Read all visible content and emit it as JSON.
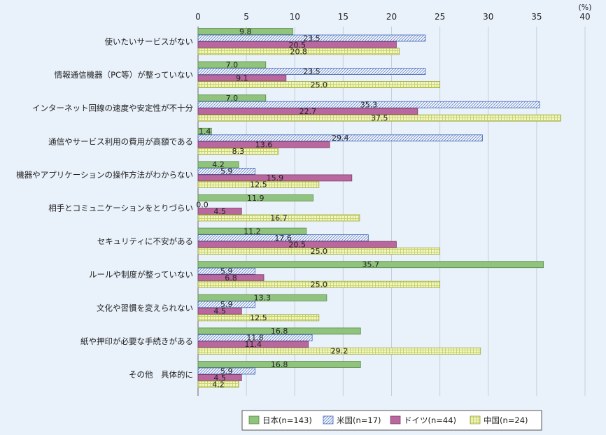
{
  "chart_data": {
    "type": "bar",
    "orientation": "horizontal",
    "unit": "(%)",
    "xlim": [
      0,
      40
    ],
    "ticks": [
      0,
      5,
      10,
      15,
      20,
      25,
      30,
      35,
      40
    ],
    "grid": "vertical",
    "legend_position": "bottom-right",
    "categories": [
      "使いたいサービスがない",
      "情報通信機器（PC等）が整っていない",
      "インターネット回線の速度や安定性が不十分",
      "通信やサービス利用の費用が高額である",
      "機器やアプリケーションの操作方法がわからない",
      "相手とコミュニケーションをとりづらい",
      "セキュリティに不安がある",
      "ルールや制度が整っていない",
      "文化や習慣を変えられない",
      "紙や押印が必要な手続きがある",
      "その他　具体的に"
    ],
    "series": [
      {
        "name": "日本(n=143)",
        "color": "#8fc37e",
        "pattern": "solid",
        "values": [
          9.8,
          7.0,
          7.0,
          1.4,
          4.2,
          11.9,
          11.2,
          35.7,
          13.3,
          16.8,
          16.8
        ]
      },
      {
        "name": "米国(n=17)",
        "color": "#9cb8e6",
        "pattern": "diagonal",
        "values": [
          23.5,
          23.5,
          35.3,
          29.4,
          5.9,
          0.0,
          17.6,
          5.9,
          5.9,
          11.8,
          5.9
        ]
      },
      {
        "name": "ドイツ(n=44)",
        "color": "#b9679e",
        "pattern": "solid",
        "values": [
          20.5,
          9.1,
          22.7,
          13.6,
          15.9,
          4.5,
          20.5,
          6.8,
          4.5,
          11.4,
          4.5
        ]
      },
      {
        "name": "中国(n=24)",
        "color": "#e6ef9a",
        "pattern": "grid",
        "values": [
          20.8,
          25.0,
          37.5,
          8.3,
          12.5,
          16.7,
          25.0,
          25.0,
          12.5,
          29.2,
          4.2
        ]
      }
    ]
  }
}
